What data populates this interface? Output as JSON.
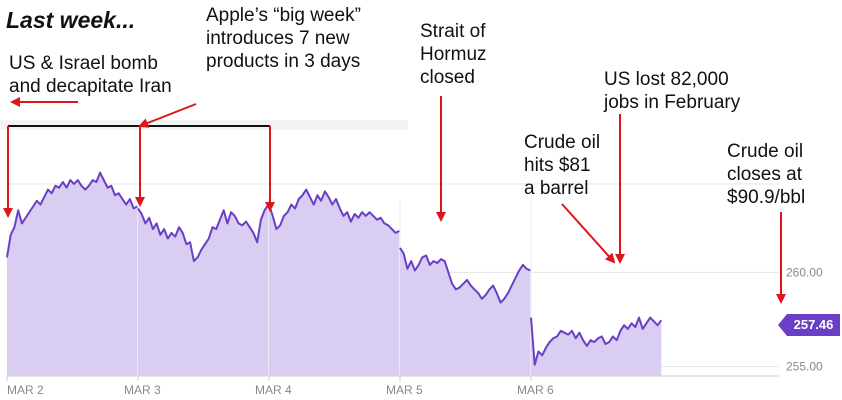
{
  "title": "Last week...",
  "annotations": {
    "us_israel": "US & Israel bomb\nand decapitate Iran",
    "apple": "Apple’s “big week”\nintroduces 7 new\nproducts in 3 days",
    "hormuz": "Strait of\nHormuz\nclosed",
    "jobs": "US lost 82,000\njobs in February",
    "crude81": "Crude oil\nhits $81\na barrel",
    "crude90": "Crude oil\ncloses at\n$90.9/bbl"
  },
  "colors": {
    "line": "#6a3fc7",
    "fill": "#d9cdf2",
    "arrow": "#e0151b",
    "bracket": "#111111",
    "grid": "#e6e6e6",
    "axis_text": "#888888"
  },
  "chart_data": {
    "type": "area",
    "title": "",
    "xlabel": "",
    "ylabel": "",
    "x_ticks": [
      "MAR 2",
      "MAR 3",
      "MAR 4",
      "MAR 5",
      "MAR 6"
    ],
    "y_ticks": [
      255.0,
      260.0
    ],
    "y_tick_labels": [
      "255.00",
      "260.00"
    ],
    "ylim": [
      254.5,
      266.5
    ],
    "current_value": "257.46",
    "grid": true,
    "sessions": [
      {
        "start": 0,
        "values": [
          260.8,
          262.0,
          262.4,
          263.3,
          262.6,
          262.9,
          263.2,
          263.5,
          263.8,
          263.6,
          264.0,
          264.4,
          264.2,
          264.6,
          264.5,
          264.8,
          264.5,
          264.9,
          264.7,
          264.9,
          264.6,
          264.4,
          264.6,
          264.9,
          264.8,
          265.3,
          264.9,
          264.5,
          264.6,
          264.1,
          264.2,
          263.9,
          263.6,
          263.9,
          263.4,
          263.5
        ]
      },
      {
        "start": 100,
        "values": [
          263.4,
          263.1,
          262.6,
          262.9,
          262.3,
          262.6,
          262.0,
          262.3,
          261.8,
          262.1,
          261.9,
          262.4,
          262.1,
          261.5,
          261.6,
          260.6,
          260.8,
          261.2,
          261.5,
          261.8,
          262.4,
          262.3,
          262.8,
          263.3,
          262.6,
          263.2,
          263.0,
          262.6,
          262.5,
          262.7,
          262.4,
          262.1,
          261.6,
          262.8,
          263.3,
          263.6
        ]
      },
      {
        "start": 200,
        "values": [
          263.6,
          263.0,
          262.3,
          262.5,
          263.0,
          263.2,
          263.6,
          263.4,
          263.9,
          264.1,
          264.4,
          264.0,
          263.6,
          264.1,
          263.8,
          264.3,
          264.0,
          263.6,
          263.9,
          263.4,
          263.0,
          263.2,
          262.7,
          263.1,
          262.9,
          263.2,
          263.0,
          263.2,
          263.0,
          262.8,
          262.9,
          262.6,
          262.5,
          262.3,
          262.1,
          262.2
        ]
      },
      {
        "start": 300,
        "values": [
          261.3,
          261.0,
          260.2,
          260.6,
          260.1,
          260.4,
          260.8,
          260.9,
          260.4,
          260.6,
          260.5,
          260.7,
          260.6,
          260.0,
          259.4,
          259.1,
          259.2,
          259.4,
          259.6,
          259.3,
          259.1,
          258.9,
          258.6,
          258.8,
          259.1,
          259.3,
          258.9,
          258.4,
          258.6,
          258.9,
          259.3,
          259.7,
          260.1,
          260.4,
          260.2,
          260.1
        ]
      },
      {
        "start": 400,
        "values": [
          257.6,
          255.1,
          255.8,
          255.6,
          256.0,
          256.3,
          256.5,
          256.6,
          256.9,
          256.8,
          256.7,
          256.9,
          256.5,
          256.8,
          256.4,
          256.1,
          256.4,
          256.3,
          256.5,
          256.6,
          256.2,
          256.3,
          256.6,
          256.4,
          256.9,
          257.2,
          257.0,
          257.3,
          257.1,
          257.6,
          257.0,
          257.3,
          257.6,
          257.4,
          257.2,
          257.46
        ]
      }
    ]
  }
}
